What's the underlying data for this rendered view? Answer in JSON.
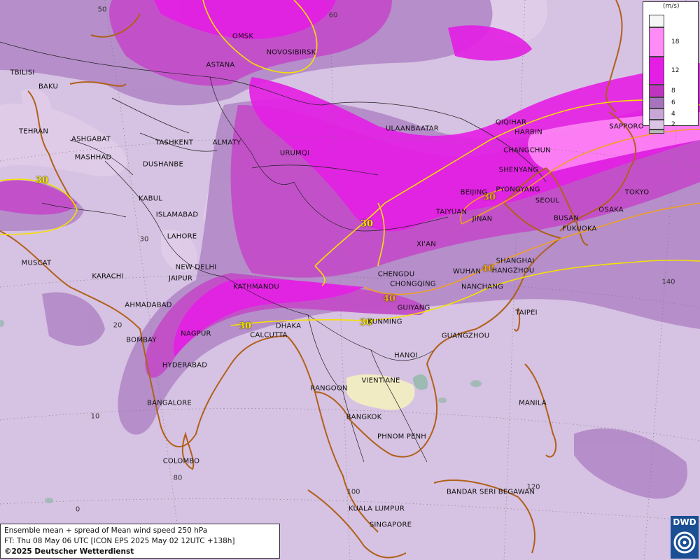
{
  "legend": {
    "unit": "(m/s)",
    "steps": [
      {
        "value": "",
        "color": "#f6f6f6"
      },
      {
        "value": "18",
        "color": "#ff8cf6"
      },
      {
        "value": "12",
        "color": "#e41ee4"
      },
      {
        "value": "8",
        "color": "#c034c0"
      },
      {
        "value": "6",
        "color": "#a674bc"
      },
      {
        "value": "4",
        "color": "#c8a6d6"
      },
      {
        "value": "2",
        "color": "#dbc4e6"
      },
      {
        "value": "",
        "color": "#b7b7b7"
      }
    ]
  },
  "info": {
    "line1": "Ensemble mean + spread of Mean wind speed 250 hPa",
    "line2": "FT: Thu 08 May 06 UTC [ICON EPS 2025 May 02 12UTC +138h]",
    "line3": "©2025 Deutscher Wetterdienst"
  },
  "logo": {
    "text": "DWD"
  },
  "colors": {
    "ocean_base": "#d6c2e2",
    "jet_core": "#e41ee4",
    "contour_30": "#f6e000",
    "contour_40": "#f0a020",
    "coastline": "#b0601a"
  },
  "contour_labels": [
    "30",
    "30",
    "30",
    "40",
    "40",
    "30",
    "30"
  ],
  "lat_lon_labels": [
    "50",
    "60",
    "30",
    "20",
    "10",
    "0",
    "80",
    "100",
    "120",
    "140"
  ],
  "cities": [
    "OMSK",
    "NOVOSIBIRSK",
    "ASTANA",
    "TBILISI",
    "BAKU",
    "TEHRAN",
    "ASHGABAT",
    "MASHHAD",
    "TASHKENT",
    "ALMATY",
    "DUSHANBE",
    "URUMQI",
    "ULAANBAATAR",
    "QIQIHAR",
    "HARBIN",
    "CHANGCHUN",
    "SHENYANG",
    "SAPPORO",
    "BEIJING",
    "PYONGYANG",
    "SEOUL",
    "TOKYO",
    "TAIYUAN",
    "JINAN",
    "OSAKA",
    "BUSAN",
    "FUKUOKA",
    "KABUL",
    "ISLAMABAD",
    "LAHORE",
    "XI'AN",
    "NEW DELHI",
    "MUSCAT",
    "KARACHI",
    "JAIPUR",
    "SHANGHAI",
    "CHENGDU",
    "WUHAN",
    "HANGZHOU",
    "CHONGQING",
    "NANCHANG",
    "KATHMANDU",
    "AHMADABAD",
    "GUIYANG",
    "TAIPEI",
    "DHAKA",
    "KUNMING",
    "NAGPUR",
    "CALCUTTA",
    "BOMBAY",
    "GUANGZHOU",
    "HYDERABAD",
    "HANOI",
    "VIENTIANE",
    "RANGOON",
    "MANILA",
    "BANGALORE",
    "BANGKOK",
    "PHNOM PENH",
    "COLOMBO",
    "BANDAR SERI BEGAWAN",
    "KUALA LUMPUR",
    "SINGAPORE"
  ]
}
